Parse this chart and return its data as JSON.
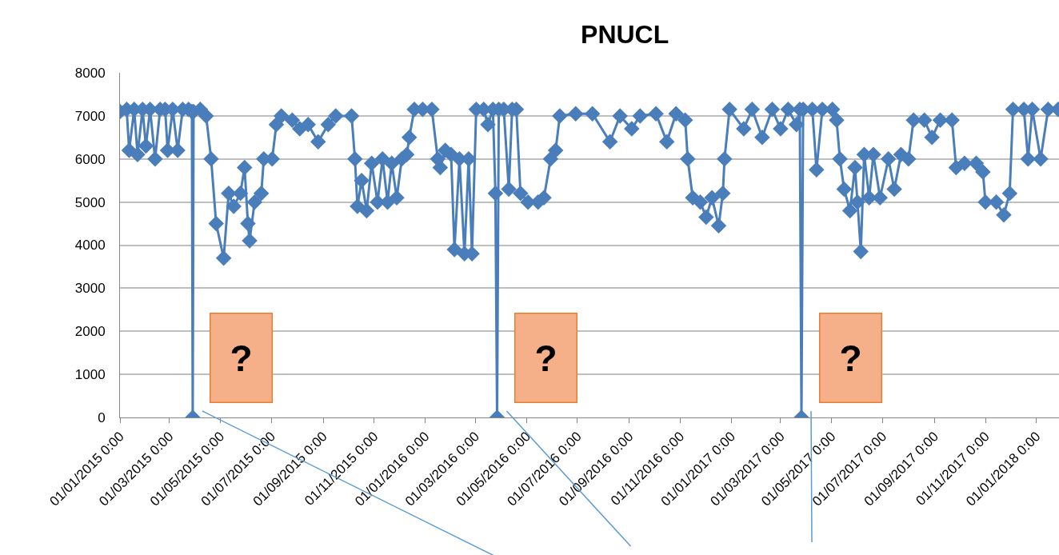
{
  "chart_data": {
    "type": "line",
    "title": "PNUCL",
    "marker": "diamond",
    "line_style": "solid",
    "grid": "y",
    "xlim": [
      "2015-01-01",
      "2018-01-28"
    ],
    "xticks": [
      {
        "value": "2015-01-01",
        "label": "01/01/2015 0:00"
      },
      {
        "value": "2015-03-01",
        "label": "01/03/2015 0:00"
      },
      {
        "value": "2015-05-01",
        "label": "01/05/2015 0:00"
      },
      {
        "value": "2015-07-01",
        "label": "01/07/2015 0:00"
      },
      {
        "value": "2015-09-01",
        "label": "01/09/2015 0:00"
      },
      {
        "value": "2015-11-01",
        "label": "01/11/2015 0:00"
      },
      {
        "value": "2016-01-01",
        "label": "01/01/2016 0:00"
      },
      {
        "value": "2016-03-01",
        "label": "01/03/2016 0:00"
      },
      {
        "value": "2016-05-01",
        "label": "01/05/2016 0:00"
      },
      {
        "value": "2016-07-01",
        "label": "01/07/2016 0:00"
      },
      {
        "value": "2016-09-01",
        "label": "01/09/2016 0:00"
      },
      {
        "value": "2016-11-01",
        "label": "01/11/2016 0:00"
      },
      {
        "value": "2017-01-01",
        "label": "01/01/2017 0:00"
      },
      {
        "value": "2017-03-01",
        "label": "01/03/2017 0:00"
      },
      {
        "value": "2017-05-01",
        "label": "01/05/2017 0:00"
      },
      {
        "value": "2017-07-01",
        "label": "01/07/2017 0:00"
      },
      {
        "value": "2017-09-01",
        "label": "01/09/2017 0:00"
      },
      {
        "value": "2017-11-01",
        "label": "01/11/2017 0:00"
      },
      {
        "value": "2018-01-01",
        "label": "01/01/2018 0:00"
      }
    ],
    "ylim": [
      0,
      8000
    ],
    "yticks": [
      0,
      1000,
      2000,
      3000,
      4000,
      5000,
      6000,
      7000,
      8000
    ],
    "x": [
      "2015-01-01",
      "2015-01-09",
      "2015-01-12",
      "2015-01-18",
      "2015-01-22",
      "2015-01-28",
      "2015-02-01",
      "2015-02-06",
      "2015-02-12",
      "2015-02-18",
      "2015-02-24",
      "2015-02-27",
      "2015-03-05",
      "2015-03-11",
      "2015-03-17",
      "2015-03-24",
      "2015-03-28",
      "2015-03-29",
      "2015-03-30",
      "2015-04-07",
      "2015-04-14",
      "2015-04-20",
      "2015-04-26",
      "2015-05-05",
      "2015-05-11",
      "2015-05-17",
      "2015-05-25",
      "2015-05-30",
      "2015-06-03",
      "2015-06-05",
      "2015-06-11",
      "2015-06-19",
      "2015-06-22",
      "2015-07-02",
      "2015-07-07",
      "2015-07-13",
      "2015-07-26",
      "2015-08-04",
      "2015-08-14",
      "2015-08-26",
      "2015-09-07",
      "2015-09-16",
      "2015-10-05",
      "2015-10-09",
      "2015-10-12",
      "2015-10-17",
      "2015-10-23",
      "2015-10-29",
      "2015-11-05",
      "2015-11-11",
      "2015-11-17",
      "2015-11-22",
      "2015-11-28",
      "2015-12-04",
      "2015-12-10",
      "2015-12-13",
      "2015-12-19",
      "2015-12-29",
      "2016-01-09",
      "2016-01-16",
      "2016-01-19",
      "2016-01-25",
      "2016-02-01",
      "2016-02-05",
      "2016-02-11",
      "2016-02-17",
      "2016-02-22",
      "2016-02-26",
      "2016-03-02",
      "2016-03-11",
      "2016-03-16",
      "2016-03-22",
      "2016-03-25",
      "2016-03-27",
      "2016-03-29",
      "2016-04-04",
      "2016-04-10",
      "2016-04-14",
      "2016-04-19",
      "2016-04-24",
      "2016-05-03",
      "2016-05-15",
      "2016-05-22",
      "2016-05-30",
      "2016-06-05",
      "2016-06-10",
      "2016-06-29",
      "2016-07-19",
      "2016-08-09",
      "2016-08-21",
      "2016-09-04",
      "2016-09-14",
      "2016-10-03",
      "2016-10-16",
      "2016-10-27",
      "2016-11-07",
      "2016-11-10",
      "2016-11-16",
      "2016-11-25",
      "2016-12-02",
      "2016-12-09",
      "2016-12-17",
      "2016-12-22",
      "2016-12-24",
      "2016-12-30",
      "2017-01-16",
      "2017-01-26",
      "2017-02-07",
      "2017-02-19",
      "2017-03-01",
      "2017-03-10",
      "2017-03-20",
      "2017-03-24",
      "2017-03-26",
      "2017-03-28",
      "2017-04-08",
      "2017-04-13",
      "2017-04-20",
      "2017-05-02",
      "2017-05-07",
      "2017-05-11",
      "2017-05-16",
      "2017-05-23",
      "2017-05-29",
      "2017-06-01",
      "2017-06-05",
      "2017-06-09",
      "2017-06-15",
      "2017-06-20",
      "2017-06-28",
      "2017-07-08",
      "2017-07-15",
      "2017-07-23",
      "2017-08-01",
      "2017-08-07",
      "2017-08-20",
      "2017-08-29",
      "2017-09-08",
      "2017-09-22",
      "2017-09-27",
      "2017-10-07",
      "2017-10-21",
      "2017-10-29",
      "2017-11-01",
      "2017-11-14",
      "2017-11-23",
      "2017-11-30",
      "2017-12-04",
      "2017-12-17",
      "2017-12-22",
      "2017-12-27",
      "2018-01-06",
      "2018-01-15",
      "2018-01-27"
    ],
    "series": [
      {
        "color": "#4a7ebb",
        "values": [
          7100,
          7150,
          6200,
          7150,
          6100,
          7150,
          6300,
          7150,
          6000,
          7150,
          7150,
          6200,
          7150,
          6200,
          7150,
          7150,
          7100,
          0,
          7100,
          7150,
          7000,
          6000,
          4500,
          3700,
          5200,
          4900,
          5200,
          5800,
          4500,
          4100,
          5000,
          5200,
          6000,
          6000,
          6800,
          7000,
          6900,
          6700,
          6800,
          6400,
          6800,
          7000,
          7000,
          6000,
          4900,
          5500,
          4800,
          5900,
          5000,
          6000,
          5000,
          5900,
          5100,
          6000,
          6100,
          6500,
          7150,
          7150,
          7150,
          6000,
          5800,
          6200,
          6100,
          3900,
          6000,
          3800,
          6000,
          3800,
          7150,
          7150,
          6800,
          7150,
          5200,
          0,
          7150,
          7150,
          5300,
          7150,
          7150,
          5200,
          5000,
          5000,
          5100,
          6000,
          6200,
          7000,
          7050,
          7050,
          6400,
          7000,
          6700,
          7000,
          7050,
          6400,
          7050,
          6900,
          6000,
          5100,
          5000,
          4650,
          5100,
          4450,
          5200,
          6000,
          7150,
          6700,
          7150,
          6500,
          7150,
          6700,
          7150,
          6800,
          7150,
          0,
          7150,
          7150,
          5750,
          7150,
          7150,
          6900,
          6000,
          5300,
          4800,
          5800,
          5000,
          3850,
          6100,
          5100,
          6100,
          5100,
          6000,
          5300,
          6100,
          6000,
          6900,
          6900,
          6500,
          6900,
          6900,
          5800,
          5900,
          5900,
          5700,
          5000,
          5000,
          4700,
          5200,
          7150,
          7150,
          6000,
          7150,
          6000,
          7150,
          7150
        ]
      }
    ],
    "annotations": [
      {
        "text": "?",
        "x": "2015-03-29",
        "y": 0
      },
      {
        "text": "?",
        "x": "2016-03-27",
        "y": 0
      },
      {
        "text": "?",
        "x": "2017-03-26",
        "y": 0
      }
    ]
  }
}
